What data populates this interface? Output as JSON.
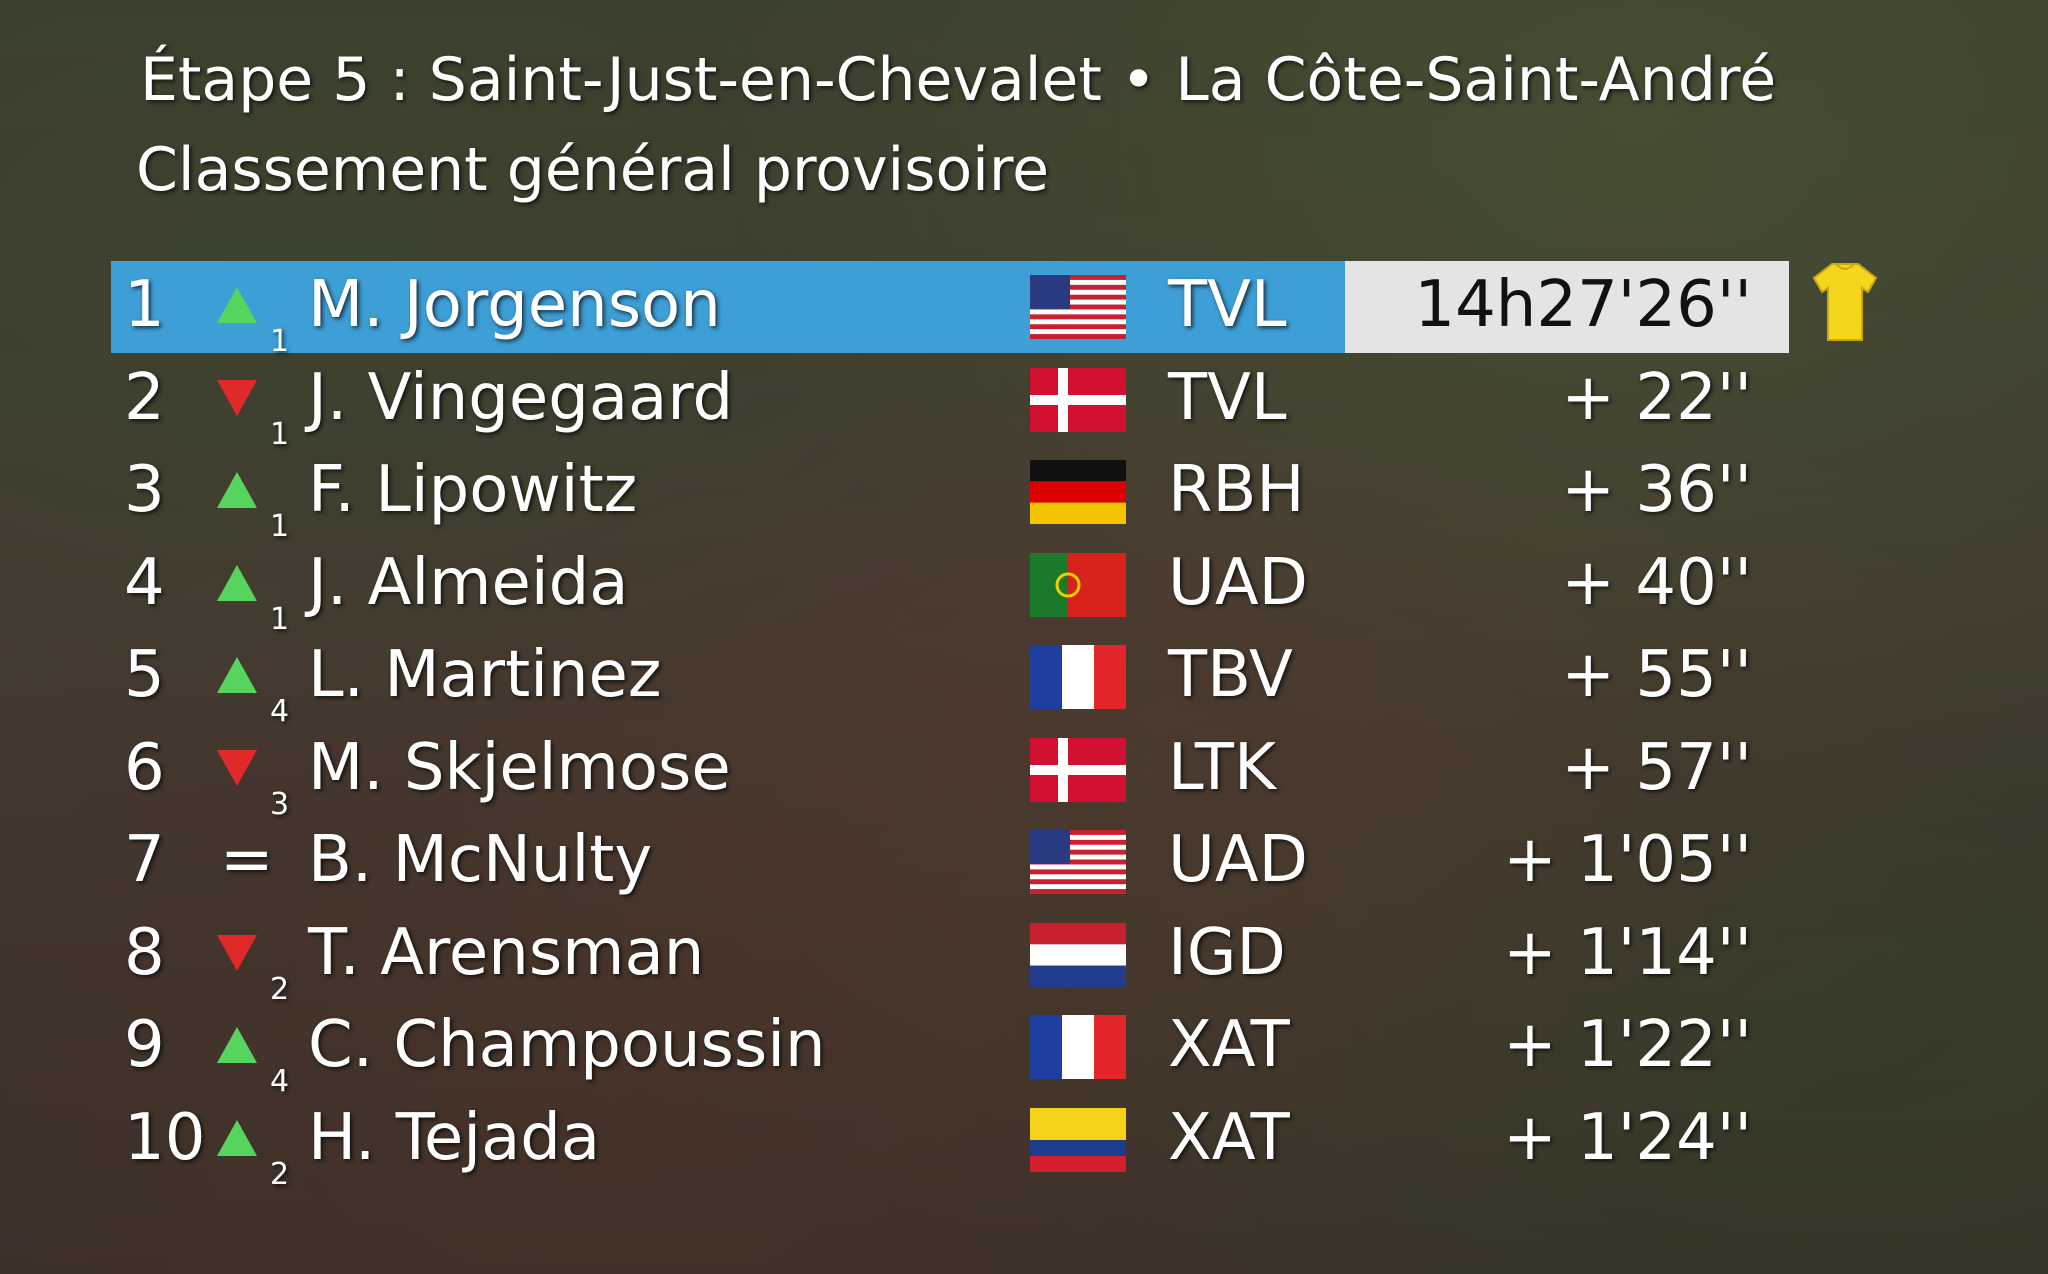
{
  "header": {
    "title": "Étape 5 : Saint-Just-en-Chevalet •  La Côte-Saint-André",
    "subtitle": "Classement général provisoire"
  },
  "standings": [
    {
      "rank": "1",
      "trend": "up",
      "change": "1",
      "name": "M. Jorgenson",
      "flag": "us",
      "team": "TVL",
      "time": "14h27'26''"
    },
    {
      "rank": "2",
      "trend": "down",
      "change": "1",
      "name": "J. Vingegaard",
      "flag": "dk",
      "team": "TVL",
      "time": "+ 22''"
    },
    {
      "rank": "3",
      "trend": "up",
      "change": "1",
      "name": "F. Lipowitz",
      "flag": "de",
      "team": "RBH",
      "time": "+ 36''"
    },
    {
      "rank": "4",
      "trend": "up",
      "change": "1",
      "name": "J. Almeida",
      "flag": "pt",
      "team": "UAD",
      "time": "+ 40''"
    },
    {
      "rank": "5",
      "trend": "up",
      "change": "4",
      "name": "L. Martinez",
      "flag": "fr",
      "team": "TBV",
      "time": "+ 55''"
    },
    {
      "rank": "6",
      "trend": "down",
      "change": "3",
      "name": "M. Skjelmose",
      "flag": "dk",
      "team": "LTK",
      "time": "+ 57''"
    },
    {
      "rank": "7",
      "trend": "=",
      "name": "B. McNulty",
      "flag": "us",
      "team": "UAD",
      "time": "+ 1'05''"
    },
    {
      "rank": "8",
      "trend": "down",
      "change": "2",
      "name": "T. Arensman",
      "flag": "nl",
      "team": "IGD",
      "time": "+ 1'14''"
    },
    {
      "rank": "9",
      "trend": "up",
      "change": "4",
      "name": "C. Champoussin",
      "flag": "fr",
      "team": "XAT",
      "time": "+ 1'22''"
    },
    {
      "rank": "10",
      "trend": "up",
      "change": "2",
      "name": "H. Tejada",
      "flag": "co",
      "team": "XAT",
      "time": "+ 1'24''"
    }
  ]
}
